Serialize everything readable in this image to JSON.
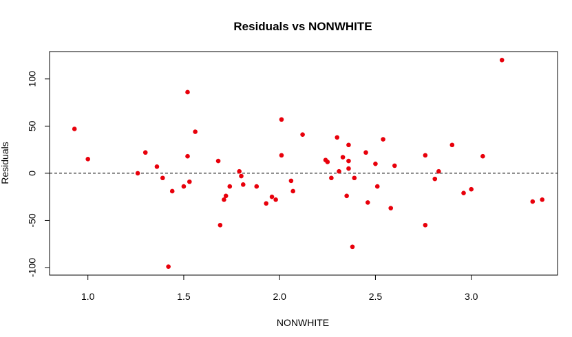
{
  "chart_data": {
    "type": "scatter",
    "title": "Residuals vs NONWHITE",
    "xlabel": "NONWHITE",
    "ylabel": "Residuals",
    "xlim": [
      0.8,
      3.45
    ],
    "ylim": [
      -108,
      129
    ],
    "xticks": [
      1.0,
      1.5,
      2.0,
      2.5,
      3.0
    ],
    "xtick_labels": [
      "1.0",
      "1.5",
      "2.0",
      "2.5",
      "3.0"
    ],
    "yticks": [
      -100,
      -50,
      0,
      50,
      100
    ],
    "ytick_labels": [
      "-100",
      "-50",
      "0",
      "50",
      "100"
    ],
    "reference_line": {
      "y": 0,
      "style": "dashed"
    },
    "grid": false,
    "point_color": "#e8000b",
    "points": [
      {
        "x": 0.93,
        "y": 47
      },
      {
        "x": 1.0,
        "y": 15
      },
      {
        "x": 1.26,
        "y": 0
      },
      {
        "x": 1.3,
        "y": 22
      },
      {
        "x": 1.36,
        "y": 7
      },
      {
        "x": 1.39,
        "y": -5
      },
      {
        "x": 1.42,
        "y": -99
      },
      {
        "x": 1.44,
        "y": -19
      },
      {
        "x": 1.5,
        "y": -14
      },
      {
        "x": 1.52,
        "y": 86
      },
      {
        "x": 1.52,
        "y": 18
      },
      {
        "x": 1.53,
        "y": -9
      },
      {
        "x": 1.56,
        "y": 44
      },
      {
        "x": 1.68,
        "y": 13
      },
      {
        "x": 1.69,
        "y": -55
      },
      {
        "x": 1.71,
        "y": -28
      },
      {
        "x": 1.72,
        "y": -24
      },
      {
        "x": 1.74,
        "y": -14
      },
      {
        "x": 1.79,
        "y": 2
      },
      {
        "x": 1.8,
        "y": -3
      },
      {
        "x": 1.81,
        "y": -12
      },
      {
        "x": 1.88,
        "y": -14
      },
      {
        "x": 1.93,
        "y": -32
      },
      {
        "x": 1.96,
        "y": -25
      },
      {
        "x": 1.98,
        "y": -28
      },
      {
        "x": 2.01,
        "y": 57
      },
      {
        "x": 2.01,
        "y": 19
      },
      {
        "x": 2.06,
        "y": -8
      },
      {
        "x": 2.07,
        "y": -19
      },
      {
        "x": 2.12,
        "y": 41
      },
      {
        "x": 2.24,
        "y": 14
      },
      {
        "x": 2.25,
        "y": 12
      },
      {
        "x": 2.27,
        "y": -5
      },
      {
        "x": 2.3,
        "y": 38
      },
      {
        "x": 2.31,
        "y": 2
      },
      {
        "x": 2.33,
        "y": 17
      },
      {
        "x": 2.35,
        "y": -24
      },
      {
        "x": 2.36,
        "y": 30
      },
      {
        "x": 2.36,
        "y": 13
      },
      {
        "x": 2.36,
        "y": 5
      },
      {
        "x": 2.38,
        "y": -78
      },
      {
        "x": 2.39,
        "y": -5
      },
      {
        "x": 2.45,
        "y": 22
      },
      {
        "x": 2.46,
        "y": -31
      },
      {
        "x": 2.5,
        "y": 10
      },
      {
        "x": 2.51,
        "y": -14
      },
      {
        "x": 2.54,
        "y": 36
      },
      {
        "x": 2.58,
        "y": -37
      },
      {
        "x": 2.6,
        "y": 8
      },
      {
        "x": 2.76,
        "y": 19
      },
      {
        "x": 2.76,
        "y": -55
      },
      {
        "x": 2.81,
        "y": -6
      },
      {
        "x": 2.83,
        "y": 2
      },
      {
        "x": 2.9,
        "y": 30
      },
      {
        "x": 2.96,
        "y": -21
      },
      {
        "x": 3.0,
        "y": -17
      },
      {
        "x": 3.06,
        "y": 18
      },
      {
        "x": 3.16,
        "y": 120
      },
      {
        "x": 3.32,
        "y": -30
      },
      {
        "x": 3.37,
        "y": -28
      }
    ]
  }
}
